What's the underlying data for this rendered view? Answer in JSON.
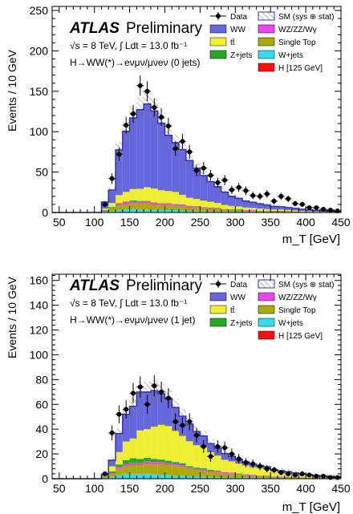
{
  "chart_data": [
    {
      "type": "histogram",
      "stacked": true,
      "title": "",
      "experiment": "ATLAS",
      "status": "Preliminary",
      "energy_line": "√s = 8 TeV, ∫ Ldt = 13.0 fb⁻¹",
      "channel_line": "H→WW(*)→eνμν/μνeν (0 jets)",
      "xlabel": "m_T [GeV]",
      "ylabel": "Events / 10 GeV",
      "xlim": [
        40,
        450
      ],
      "ylim": [
        0,
        255
      ],
      "xticks": [
        50,
        100,
        150,
        200,
        250,
        300,
        350,
        400,
        450
      ],
      "yticks": [
        0,
        50,
        100,
        150,
        200,
        250
      ],
      "bin_width": 10,
      "bin_lows": [
        110,
        120,
        130,
        140,
        150,
        160,
        170,
        180,
        190,
        200,
        210,
        220,
        230,
        240,
        250,
        260,
        270,
        280,
        290,
        300,
        310,
        320,
        330,
        340,
        350,
        360,
        370,
        380,
        390,
        400,
        410,
        420,
        430,
        440
      ],
      "stack_order": [
        "H [125 GeV]",
        "W+jets",
        "Single Top",
        "WZ/ZZ/Wγ",
        "Z+jets",
        "tt̄",
        "WW"
      ],
      "series": [
        {
          "name": "WW",
          "color": "#6666dd",
          "values": [
            8,
            16,
            56,
            75,
            88,
            98,
            103,
            96,
            83,
            69,
            61,
            56,
            46,
            38,
            31,
            25,
            20,
            16,
            12,
            10,
            8,
            7,
            6,
            5,
            4,
            3.5,
            3,
            2.5,
            2,
            1.5,
            1.2,
            1,
            0.8,
            0.5
          ]
        },
        {
          "name": "tt̄",
          "color": "#eeee33",
          "values": [
            2,
            5,
            10,
            12,
            14,
            15,
            17,
            17,
            16,
            15,
            15,
            12,
            10,
            9,
            8,
            7,
            6,
            5,
            4,
            3.5,
            3,
            2.5,
            2.5,
            2,
            1.5,
            1.5,
            1.2,
            1,
            0.8,
            0.6,
            0.5,
            0.4,
            0.3,
            0.2
          ]
        },
        {
          "name": "Z+jets",
          "color": "#22aa22",
          "values": [
            0.5,
            0.8,
            1,
            1,
            1,
            0.8,
            0.8,
            0.6,
            0.5,
            0.5,
            0.4,
            0.4,
            0.3,
            0.3,
            0.2,
            0.2,
            0.2,
            0.1,
            0.1,
            0.1,
            0.1,
            0.1,
            0.1,
            0.1,
            0.1,
            0.1,
            0.1,
            0,
            0,
            0,
            0,
            0,
            0,
            0
          ]
        },
        {
          "name": "Single Top",
          "color": "#aaaa00",
          "values": [
            1,
            3,
            5,
            6,
            7,
            7,
            7,
            6,
            6,
            6,
            5,
            5,
            4,
            4,
            3,
            3,
            3,
            2,
            2,
            2,
            1.5,
            1.5,
            1,
            1,
            1,
            1,
            1,
            0.8,
            0.6,
            0.5,
            0.4,
            0.3,
            0.2,
            0.2
          ]
        },
        {
          "name": "WZ/ZZ/Wγ",
          "color": "#ee44ee",
          "values": [
            0.5,
            1,
            2,
            2.5,
            2.5,
            2.5,
            2.5,
            2.5,
            2,
            2,
            2,
            2,
            2,
            1.5,
            1.5,
            1.5,
            1.2,
            1,
            1,
            1,
            0.8,
            0.8,
            0.6,
            0.6,
            0.5,
            0.5,
            0.4,
            0.4,
            0.3,
            0.3,
            0.2,
            0.2,
            0.2,
            0.1
          ]
        },
        {
          "name": "W+jets",
          "color": "#33ddee",
          "values": [
            1,
            2,
            3.5,
            4,
            4.5,
            4,
            4,
            3.5,
            3,
            3,
            3,
            2.5,
            2,
            2,
            2,
            1.5,
            1.5,
            1.2,
            1,
            1,
            0.8,
            0.8,
            0.6,
            0.6,
            0.5,
            0.5,
            0.4,
            0.4,
            0.3,
            0.3,
            0.2,
            0.2,
            0.2,
            0.1
          ]
        },
        {
          "name": "H [125 GeV]",
          "color": "#ff1111",
          "values": [
            0,
            0,
            0,
            0,
            0,
            0,
            0,
            0,
            0,
            0,
            0,
            0,
            0,
            0,
            0,
            0,
            0,
            0,
            0,
            0,
            0,
            0,
            0,
            0,
            0,
            0,
            0,
            0,
            0,
            0,
            0,
            0,
            0,
            0
          ]
        }
      ],
      "data_points": {
        "name": "Data",
        "x": [
          115,
          125,
          135,
          145,
          155,
          165,
          175,
          185,
          195,
          205,
          215,
          225,
          235,
          245,
          255,
          265,
          275,
          285,
          295,
          305,
          315,
          325,
          335,
          345,
          355,
          365,
          375,
          385,
          395,
          405,
          415,
          425,
          435,
          445
        ],
        "y": [
          10,
          42,
          72,
          108,
          122,
          157,
          150,
          130,
          118,
          107,
          79,
          88,
          75,
          52,
          55,
          46,
          37,
          40,
          28,
          31,
          27,
          21,
          20,
          23,
          14,
          20,
          17,
          11,
          10,
          6,
          6,
          4,
          3,
          2
        ]
      },
      "uncertainty_label": "SM (sys ⊕ stat)"
    },
    {
      "type": "histogram",
      "stacked": true,
      "title": "",
      "experiment": "ATLAS",
      "status": "Preliminary",
      "energy_line": "√s = 8 TeV, ∫ Ldt = 13.0 fb⁻¹",
      "channel_line": "H→WW(*)→eνμν/μνeν (1 jet)",
      "xlabel": "m_T [GeV]",
      "ylabel": "Events / 10 GeV",
      "xlim": [
        40,
        450
      ],
      "ylim": [
        0,
        165
      ],
      "xticks": [
        50,
        100,
        150,
        200,
        250,
        300,
        350,
        400,
        450
      ],
      "yticks": [
        0,
        20,
        40,
        60,
        80,
        100,
        120,
        140,
        160
      ],
      "bin_width": 10,
      "bin_lows": [
        110,
        120,
        130,
        140,
        150,
        160,
        170,
        180,
        190,
        200,
        210,
        220,
        230,
        240,
        250,
        260,
        270,
        280,
        290,
        300,
        310,
        320,
        330,
        340,
        350,
        360,
        370,
        380,
        390,
        400,
        410,
        420,
        430,
        440
      ],
      "stack_order": [
        "H [125 GeV]",
        "W+jets",
        "Single Top",
        "WZ/ZZ/Wγ",
        "Z+jets",
        "tt̄",
        "WW"
      ],
      "series": [
        {
          "name": "WW",
          "color": "#6666dd",
          "values": [
            1,
            5,
            15,
            22,
            26,
            31,
            30,
            29,
            25,
            22,
            19,
            16,
            14,
            11,
            9,
            7,
            6,
            5,
            4,
            3.5,
            3,
            2.5,
            2,
            2,
            1.5,
            1.2,
            1,
            0.8,
            0.7,
            0.6,
            0.5,
            0.4,
            0.3,
            0.3
          ]
        },
        {
          "name": "tt̄",
          "color": "#eeee33",
          "values": [
            0.5,
            4,
            10,
            15,
            16,
            23,
            23,
            26,
            28,
            28,
            25,
            22,
            20,
            18,
            17,
            14,
            12,
            10,
            9,
            8,
            7,
            6,
            6,
            5,
            4,
            3.5,
            3,
            2.5,
            2,
            1.8,
            1.5,
            1.2,
            1,
            0.8
          ]
        },
        {
          "name": "Z+jets",
          "color": "#22aa22",
          "values": [
            0.5,
            1.5,
            2,
            3,
            3.5,
            3,
            3,
            2.5,
            2,
            2,
            1.5,
            1.5,
            1,
            1,
            1,
            0.8,
            0.6,
            0.5,
            0.4,
            0.3,
            0.3,
            0.2,
            0.2,
            0.2,
            0.1,
            0.1,
            0.1,
            0.1,
            0,
            0,
            0,
            0,
            0,
            0
          ]
        },
        {
          "name": "Single Top",
          "color": "#aaaa00",
          "values": [
            0.5,
            2,
            5,
            6,
            7,
            7,
            8,
            8,
            9,
            8,
            8,
            7,
            6,
            5,
            5,
            4,
            4,
            3,
            3,
            2.5,
            2,
            2,
            1.5,
            1.5,
            1,
            1,
            1,
            0.8,
            0.6,
            0.5,
            0.4,
            0.3,
            0.3,
            0.2
          ]
        },
        {
          "name": "WZ/ZZ/Wγ",
          "color": "#ee44ee",
          "values": [
            0.3,
            1,
            1.5,
            2,
            2,
            2,
            2,
            2,
            1.5,
            1.5,
            1.5,
            1.5,
            1.2,
            1,
            1,
            1,
            0.8,
            0.8,
            0.6,
            0.6,
            0.5,
            0.5,
            0.4,
            0.4,
            0.3,
            0.3,
            0.2,
            0.2,
            0.2,
            0.1,
            0.1,
            0.1,
            0.1,
            0.1
          ]
        },
        {
          "name": "W+jets",
          "color": "#33ddee",
          "values": [
            0.5,
            1.5,
            3,
            4,
            4,
            4,
            4,
            3.5,
            3,
            3,
            2.5,
            2.5,
            2,
            2,
            1.5,
            1.5,
            1.2,
            1,
            1,
            0.8,
            0.8,
            0.6,
            0.6,
            0.5,
            0.5,
            0.4,
            0.4,
            0.3,
            0.3,
            0.2,
            0.2,
            0.2,
            0.1,
            0.1
          ]
        },
        {
          "name": "H [125 GeV]",
          "color": "#ff1111",
          "values": [
            0,
            0,
            0,
            0,
            0,
            0,
            0,
            0,
            0,
            0,
            0,
            0,
            0,
            0,
            0,
            0,
            0,
            0,
            0,
            0,
            0,
            0,
            0,
            0,
            0,
            0,
            0,
            0,
            0,
            0,
            0,
            0,
            0,
            0
          ]
        }
      ],
      "data_points": {
        "name": "Data",
        "x": [
          115,
          125,
          135,
          145,
          155,
          165,
          175,
          185,
          195,
          205,
          215,
          225,
          235,
          245,
          255,
          265,
          275,
          285,
          295,
          305,
          315,
          325,
          335,
          345,
          355,
          365,
          375,
          385,
          395,
          405,
          415,
          425,
          435,
          445
        ],
        "y": [
          4,
          37,
          52,
          56,
          69,
          74,
          60,
          75,
          70,
          65,
          46,
          43,
          46,
          35,
          26,
          18,
          26,
          25,
          20,
          16,
          13,
          12,
          10,
          8,
          7,
          5,
          4,
          3,
          4,
          3,
          2,
          2,
          1,
          1
        ]
      },
      "uncertainty_label": "SM (sys ⊕ stat)"
    }
  ]
}
